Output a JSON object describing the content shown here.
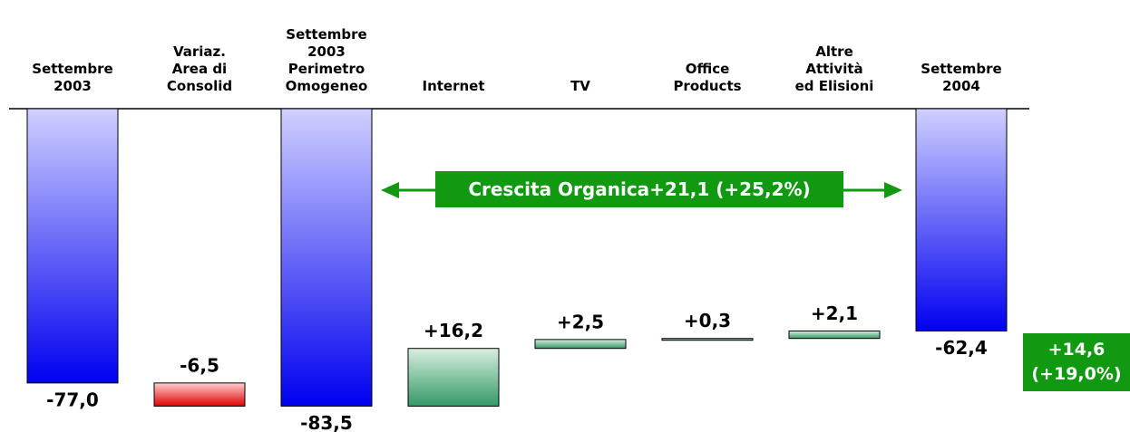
{
  "chart_data": {
    "type": "waterfall",
    "categories": [
      "Settembre\n2003",
      "Variaz.\nArea di\nConsolid",
      "Settembre\n2003\nPerimetro\nOmogeneo",
      "Internet",
      "TV",
      "Office\nProducts",
      "Altre\nAttività\ned Elisioni",
      "Settembre\n2004"
    ],
    "values": [
      -77.0,
      -6.5,
      -83.5,
      16.2,
      2.5,
      0.3,
      2.1,
      -62.4
    ],
    "value_labels": [
      "-77,0",
      "-6,5",
      "-83,5",
      "+16,2",
      "+2,5",
      "+0,3",
      "+2,1",
      "-62,4"
    ],
    "totals": [
      true,
      false,
      true,
      false,
      false,
      false,
      false,
      true
    ],
    "ylim": [
      -90,
      0
    ],
    "total_color": [
      "#d0d0ff",
      "#0000f0"
    ],
    "negative_color": [
      "#ffd0d0",
      "#e00000"
    ],
    "positive_color": [
      "#d8eee0",
      "#339966"
    ],
    "annotations": [
      "Crescita Organica+21,1 (+25,2%)",
      "+14,6\n(+19,0%)"
    ],
    "annotation_color": "#119911"
  }
}
